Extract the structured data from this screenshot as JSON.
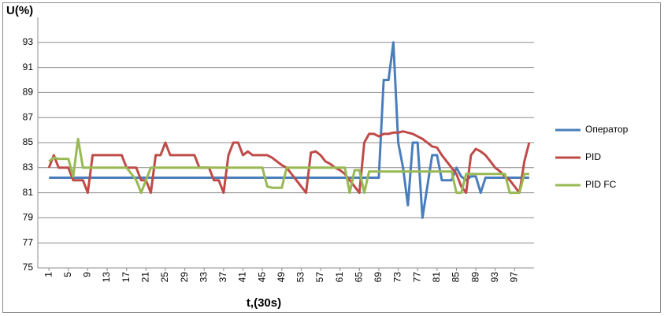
{
  "chart_data": {
    "type": "line",
    "y_label": "U(%)",
    "x_label": "t,(30s)",
    "x": [
      1,
      2,
      3,
      4,
      5,
      6,
      7,
      8,
      9,
      10,
      11,
      12,
      13,
      14,
      15,
      16,
      17,
      18,
      19,
      20,
      21,
      22,
      23,
      24,
      25,
      26,
      27,
      28,
      29,
      30,
      31,
      32,
      33,
      34,
      35,
      36,
      37,
      38,
      39,
      40,
      41,
      42,
      43,
      44,
      45,
      46,
      47,
      48,
      49,
      50,
      51,
      52,
      53,
      54,
      55,
      56,
      57,
      58,
      59,
      60,
      61,
      62,
      63,
      64,
      65,
      66,
      67,
      68,
      69,
      70,
      71,
      72,
      73,
      74,
      75,
      76,
      77,
      78,
      79,
      80,
      81,
      82,
      83,
      84,
      85,
      86,
      87,
      88,
      89,
      90,
      91,
      92,
      93,
      94,
      95,
      96,
      97,
      98,
      99,
      100
    ],
    "xlim": [
      -1.3,
      101
    ],
    "xticks": [
      1,
      5,
      9,
      13,
      17,
      21,
      25,
      29,
      33,
      37,
      41,
      45,
      49,
      53,
      57,
      61,
      65,
      69,
      73,
      77,
      81,
      85,
      89,
      93,
      97
    ],
    "ylim": [
      75,
      95
    ],
    "yticks": [
      75,
      77,
      79,
      81,
      83,
      85,
      87,
      89,
      91,
      93
    ],
    "grid": true,
    "legend": "right",
    "series": [
      {
        "name": "Оператор",
        "color": "#4a7ebb",
        "values": [
          82.2,
          82.2,
          82.2,
          82.2,
          82.2,
          82.2,
          82.2,
          82.2,
          82.2,
          82.2,
          82.2,
          82.2,
          82.2,
          82.2,
          82.2,
          82.2,
          82.2,
          82.2,
          82.2,
          82.2,
          82.2,
          82.2,
          82.2,
          82.2,
          82.2,
          82.2,
          82.2,
          82.2,
          82.2,
          82.2,
          82.2,
          82.2,
          82.2,
          82.2,
          82.2,
          82.2,
          82.2,
          82.2,
          82.2,
          82.2,
          82.2,
          82.2,
          82.2,
          82.2,
          82.2,
          82.2,
          82.2,
          82.2,
          82.2,
          82.2,
          82.2,
          82.2,
          82.2,
          82.2,
          82.2,
          82.2,
          82.2,
          82.2,
          82.2,
          82.2,
          82.2,
          82.2,
          82.2,
          82.2,
          82.2,
          82.2,
          82.2,
          82.2,
          82.2,
          90,
          90,
          93,
          85,
          83,
          80,
          85,
          85,
          79,
          81.5,
          84,
          84,
          82,
          82,
          82,
          83,
          82.3,
          82,
          82.3,
          82.3,
          81,
          82.2,
          82.2,
          82.2,
          82.2,
          82.2,
          82.2,
          82.2,
          82.2,
          82.2,
          82.2
        ]
      },
      {
        "name": "PID",
        "color": "#be4b48",
        "values": [
          83,
          84,
          83,
          83,
          83,
          82,
          82,
          82,
          81,
          84,
          84,
          84,
          84,
          84,
          84,
          84,
          83,
          83,
          83,
          82,
          82,
          81,
          84,
          84,
          85,
          84,
          84,
          84,
          84,
          84,
          84,
          83,
          83,
          83,
          82,
          82,
          81,
          84,
          85,
          85,
          84,
          84.3,
          84,
          84,
          84,
          84,
          83.8,
          83.5,
          83.2,
          83,
          82.5,
          82,
          81.5,
          81,
          84.2,
          84.3,
          84,
          83.5,
          83.3,
          83,
          82.8,
          82.5,
          82,
          81.5,
          81,
          85,
          85.7,
          85.7,
          85.5,
          85.7,
          85.7,
          85.8,
          85.8,
          85.9,
          85.8,
          85.7,
          85.5,
          85.3,
          85,
          84.7,
          84.6,
          84,
          83.5,
          83,
          82.5,
          81.5,
          81,
          84,
          84.5,
          84.3,
          84,
          83.5,
          83,
          82.7,
          82.3,
          82,
          81.5,
          81,
          83.5,
          85
        ]
      },
      {
        "name": "PID FC",
        "color": "#98b954",
        "values": [
          83.5,
          83.8,
          83.7,
          83.7,
          83.7,
          82.3,
          85.3,
          83,
          83,
          83,
          83,
          83,
          83,
          83,
          83,
          83,
          83,
          82.5,
          82,
          81,
          82,
          83,
          83,
          83,
          83,
          83,
          83,
          83,
          83,
          83,
          83,
          83,
          83,
          83,
          83,
          83,
          83,
          83,
          83,
          83,
          83,
          83,
          83,
          83,
          83,
          81.5,
          81.4,
          81.4,
          81.4,
          83,
          83,
          83,
          83,
          83,
          83,
          83,
          83,
          83,
          83,
          83,
          83,
          83,
          81,
          82.8,
          82.8,
          81,
          82.7,
          82.7,
          82.7,
          82.7,
          82.7,
          82.7,
          82.7,
          82.7,
          82.7,
          82.7,
          82.7,
          82.7,
          82.7,
          82.7,
          82.7,
          82.7,
          82.7,
          82.7,
          81,
          81,
          82.5,
          82.5,
          82.5,
          82.5,
          82.5,
          82.5,
          82.5,
          82.5,
          82.5,
          81,
          81,
          81,
          82.5,
          82.5
        ]
      }
    ]
  }
}
